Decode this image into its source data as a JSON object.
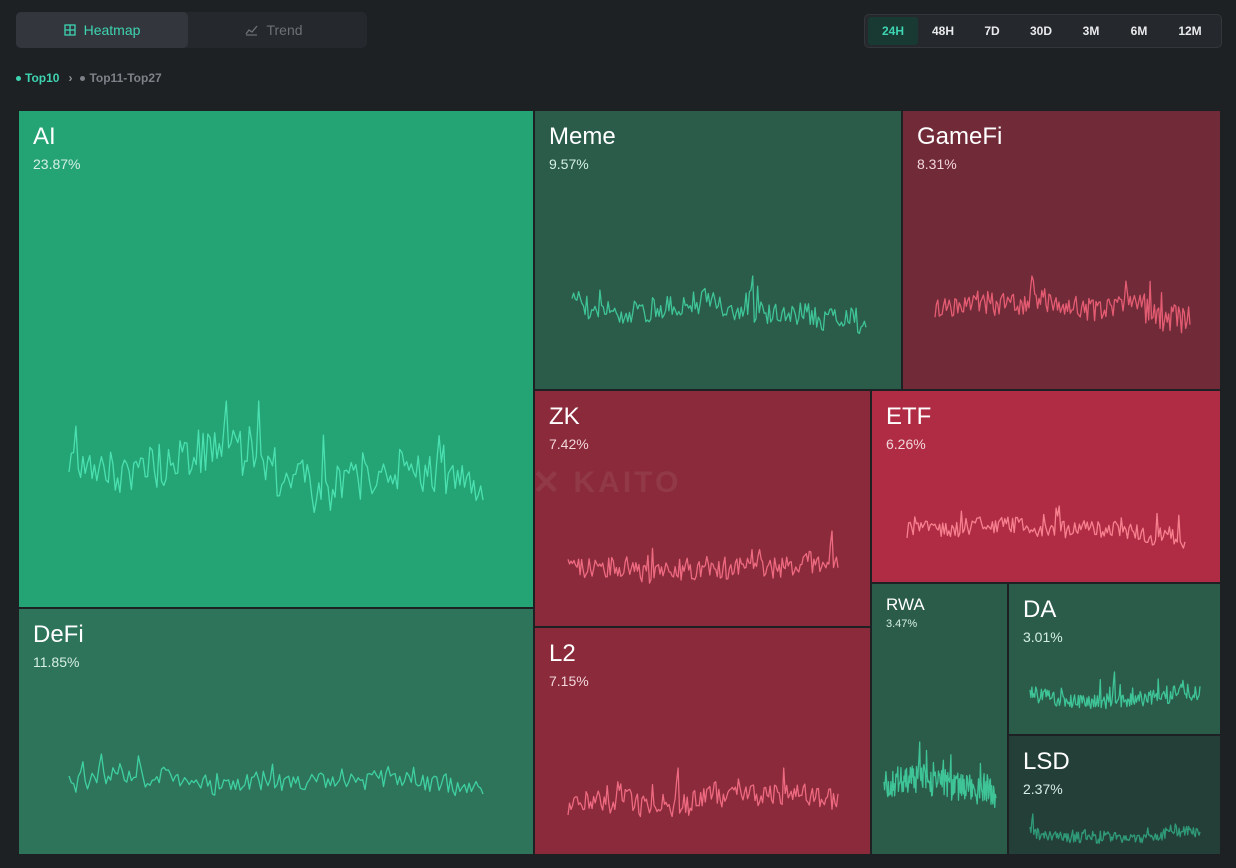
{
  "view_toggle": {
    "heatmap_label": "Heatmap",
    "trend_label": "Trend",
    "active": "heatmap"
  },
  "time_ranges": {
    "options": [
      "24H",
      "48H",
      "7D",
      "30D",
      "3M",
      "6M",
      "12M"
    ],
    "selected": "24H"
  },
  "breadcrumb": {
    "current": "Top10",
    "next": "Top11-Top27"
  },
  "watermark": "KAITO",
  "colors": {
    "accent": "#3ed4b1",
    "background": "#1e2124",
    "tile_green_bright": "#24a475",
    "tile_green": "#2e745a",
    "tile_green_dark": "#2a5c49",
    "tile_green_darker": "#243f37",
    "tile_red": "#8a2a3b",
    "tile_red_bright": "#b02c44",
    "tile_red_dark": "#712a38"
  },
  "tiles": [
    {
      "name": "AI",
      "share": "23.87%",
      "trend": "up",
      "color": "#24a475",
      "line_color": "#4be0b0",
      "seed": 11,
      "spike": 0.38
    },
    {
      "name": "DeFi",
      "share": "11.85%",
      "trend": "up",
      "color": "#2e745a",
      "line_color": "#3fd0a2",
      "seed": 23,
      "spike": 0.08
    },
    {
      "name": "Meme",
      "share": "9.57%",
      "trend": "up",
      "color": "#2a5c49",
      "line_color": "#3fc497",
      "seed": 37,
      "spike": 0.62
    },
    {
      "name": "GameFi",
      "share": "8.31%",
      "trend": "down",
      "color": "#712a38",
      "line_color": "#e45c72",
      "seed": 41,
      "spike": 0.38
    },
    {
      "name": "ZK",
      "share": "7.42%",
      "trend": "down",
      "color": "#8a2a3b",
      "line_color": "#ee6a80",
      "seed": 53,
      "spike": 0.98
    },
    {
      "name": "ETF",
      "share": "6.26%",
      "trend": "down",
      "color": "#b02c44",
      "line_color": "#f7808f",
      "seed": 61,
      "spike": 0.55
    },
    {
      "name": "L2",
      "share": "7.15%",
      "trend": "down",
      "color": "#8a2a3b",
      "line_color": "#ee6a80",
      "seed": 71,
      "spike": 0.41
    },
    {
      "name": "RWA",
      "share": "3.47%",
      "trend": "up",
      "color": "#2a5c49",
      "line_color": "#3fc497",
      "seed": 83,
      "spike": 0.32
    },
    {
      "name": "DA",
      "share": "3.01%",
      "trend": "up",
      "color": "#2a5c49",
      "line_color": "#3fc497",
      "seed": 97,
      "spike": 0.5
    },
    {
      "name": "LSD",
      "share": "2.37%",
      "trend": "up",
      "color": "#243f37",
      "line_color": "#2f9a78",
      "seed": 101,
      "spike": 0.02
    }
  ]
}
